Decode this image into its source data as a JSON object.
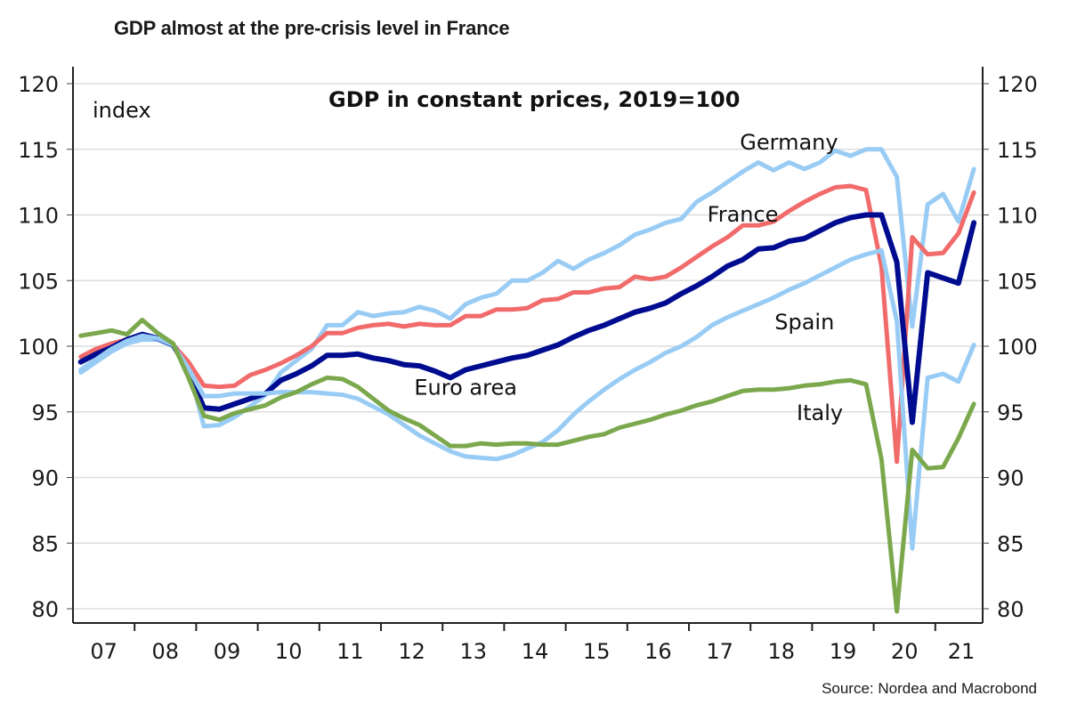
{
  "page": {
    "title": "GDP almost at the pre-crisis level in France",
    "source": "Source: Nordea and Macrobond"
  },
  "chart_data": {
    "type": "line",
    "title": "GDP in constant prices, 2019=100",
    "ylabel": "index",
    "xlabel": "",
    "ylim": [
      79,
      122
    ],
    "yticks": [
      80,
      85,
      90,
      95,
      100,
      105,
      110,
      115,
      120
    ],
    "ytick_labels": [
      "80",
      "85",
      "90",
      "95",
      "100",
      "105",
      "110",
      "115",
      "120"
    ],
    "y_axis_sides": [
      "left",
      "right"
    ],
    "grid": true,
    "x_frequency": "quarterly",
    "x_start": "2007Q1",
    "x_end": "2021Q3",
    "xtick_labels": [
      "07",
      "08",
      "09",
      "10",
      "11",
      "12",
      "13",
      "14",
      "15",
      "16",
      "17",
      "18",
      "19",
      "20",
      "21"
    ],
    "legend": "inline labels",
    "series": [
      {
        "name": "Germany",
        "color": "#99ccf5",
        "values": [
          98.0,
          98.8,
          99.6,
          100.2,
          100.5,
          100.5,
          100.0,
          98.4,
          93.9,
          94.0,
          94.6,
          95.4,
          96.3,
          98.0,
          98.9,
          99.8,
          101.6,
          101.6,
          102.6,
          102.3,
          102.5,
          102.6,
          103.0,
          102.7,
          102.1,
          103.2,
          103.7,
          104.0,
          105.0,
          105.0,
          105.6,
          106.5,
          105.9,
          106.6,
          107.1,
          107.7,
          108.5,
          108.9,
          109.4,
          109.7,
          111.0,
          111.7,
          112.5,
          113.3,
          114.0,
          113.4,
          114.0,
          113.5,
          114.0,
          114.9,
          114.5,
          115.0,
          115.0,
          112.9,
          101.5,
          110.8,
          111.6,
          109.5,
          113.5
        ]
      },
      {
        "name": "France",
        "color": "#f26b6b",
        "values": [
          99.2,
          99.8,
          100.2,
          100.5,
          100.8,
          100.6,
          100.1,
          98.8,
          97.0,
          96.9,
          97.0,
          97.8,
          98.2,
          98.7,
          99.3,
          100.0,
          101.0,
          101.0,
          101.4,
          101.6,
          101.7,
          101.5,
          101.7,
          101.6,
          101.6,
          102.3,
          102.3,
          102.8,
          102.8,
          102.9,
          103.5,
          103.6,
          104.1,
          104.1,
          104.4,
          104.5,
          105.3,
          105.1,
          105.3,
          106.0,
          106.8,
          107.6,
          108.3,
          109.2,
          109.2,
          109.5,
          110.3,
          111.0,
          111.6,
          112.1,
          112.2,
          111.9,
          106.1,
          91.2,
          108.3,
          107.0,
          107.1,
          108.6,
          111.7
        ]
      },
      {
        "name": "Euro area",
        "color": "#000c8f",
        "values": [
          98.8,
          99.4,
          99.9,
          100.5,
          100.9,
          100.6,
          100.1,
          98.1,
          95.3,
          95.2,
          95.6,
          96.0,
          96.4,
          97.4,
          97.9,
          98.5,
          99.3,
          99.3,
          99.4,
          99.1,
          98.9,
          98.6,
          98.5,
          98.1,
          97.6,
          98.2,
          98.5,
          98.8,
          99.1,
          99.3,
          99.7,
          100.1,
          100.7,
          101.2,
          101.6,
          102.1,
          102.6,
          102.9,
          103.3,
          104.0,
          104.6,
          105.3,
          106.1,
          106.6,
          107.4,
          107.5,
          108.0,
          108.2,
          108.8,
          109.4,
          109.8,
          110.0,
          110.0,
          106.4,
          94.2,
          105.6,
          105.2,
          104.8,
          109.4
        ]
      },
      {
        "name": "Spain",
        "color": "#99ccf5",
        "values": [
          98.2,
          99.0,
          99.8,
          100.4,
          100.8,
          100.6,
          100.1,
          98.3,
          96.2,
          96.2,
          96.4,
          96.4,
          96.4,
          96.5,
          96.5,
          96.5,
          96.4,
          96.3,
          96.0,
          95.4,
          94.8,
          94.0,
          93.2,
          92.6,
          92.0,
          91.6,
          91.5,
          91.4,
          91.7,
          92.2,
          92.7,
          93.6,
          94.8,
          95.8,
          96.7,
          97.5,
          98.2,
          98.8,
          99.5,
          100.0,
          100.7,
          101.6,
          102.2,
          102.7,
          103.2,
          103.7,
          104.3,
          104.8,
          105.4,
          106.0,
          106.6,
          107.0,
          107.3,
          101.9,
          84.6,
          97.6,
          97.9,
          97.3,
          100.1
        ]
      },
      {
        "name": "Italy",
        "color": "#7ca84d",
        "values": [
          100.8,
          101.0,
          101.2,
          100.9,
          102.0,
          101.0,
          100.2,
          97.6,
          94.7,
          94.4,
          94.9,
          95.2,
          95.5,
          96.1,
          96.5,
          97.1,
          97.6,
          97.5,
          96.9,
          96.0,
          95.1,
          94.5,
          94.0,
          93.2,
          92.4,
          92.4,
          92.6,
          92.5,
          92.6,
          92.6,
          92.5,
          92.5,
          92.8,
          93.1,
          93.3,
          93.8,
          94.1,
          94.4,
          94.8,
          95.1,
          95.5,
          95.8,
          96.2,
          96.6,
          96.7,
          96.7,
          96.8,
          97.0,
          97.1,
          97.3,
          97.4,
          97.1,
          91.4,
          79.8,
          92.1,
          90.7,
          90.8,
          93.0,
          95.6
        ]
      }
    ],
    "annotations": [
      {
        "text": "Germany",
        "near_series": "Germany",
        "x": "2018Q3",
        "y": 115.6
      },
      {
        "text": "France",
        "near_series": "France",
        "x": "2017Q4",
        "y": 110.1
      },
      {
        "text": "Spain",
        "near_series": "Spain",
        "x": "2018Q4",
        "y": 101.9
      },
      {
        "text": "Euro area",
        "near_series": "Euro area",
        "x": "2013Q2",
        "y": 96.9
      },
      {
        "text": "Italy",
        "near_series": "Italy",
        "x": "2019Q1",
        "y": 95.0
      }
    ]
  }
}
